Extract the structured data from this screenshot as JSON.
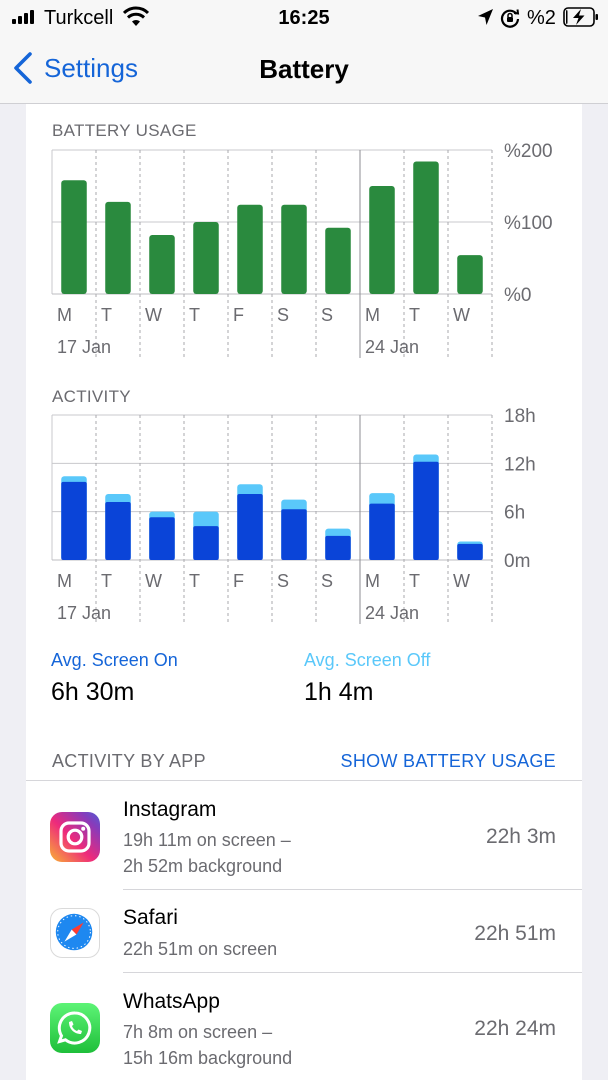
{
  "status": {
    "carrier": "Turkcell",
    "time": "16:25",
    "battery_percent": "%2",
    "battery_level": 0.02
  },
  "nav": {
    "back_label": "Settings",
    "title": "Battery"
  },
  "battery_usage": {
    "heading": "BATTERY USAGE",
    "chart_data": {
      "type": "bar",
      "categories": [
        "M",
        "T",
        "W",
        "T",
        "F",
        "S",
        "S",
        "M",
        "T",
        "W"
      ],
      "values": [
        158,
        128,
        82,
        100,
        124,
        124,
        92,
        150,
        184,
        54
      ],
      "y_tick_labels": [
        "%200",
        "%100",
        "%0"
      ],
      "ylim": [
        0,
        200
      ],
      "week_labels": [
        {
          "index": 0,
          "label": "17 Jan"
        },
        {
          "index": 7,
          "label": "24 Jan"
        }
      ],
      "color": "#2a8a3e"
    }
  },
  "activity": {
    "heading": "ACTIVITY",
    "chart_data": {
      "type": "bar",
      "categories": [
        "M",
        "T",
        "W",
        "T",
        "F",
        "S",
        "S",
        "M",
        "T",
        "W"
      ],
      "series": [
        {
          "name": "Avg. Screen On",
          "values": [
            9.7,
            7.2,
            5.3,
            4.2,
            8.2,
            6.3,
            3.0,
            7.0,
            12.2,
            2.0
          ]
        },
        {
          "name": "Avg. Screen Off",
          "values": [
            0.7,
            1.0,
            0.7,
            1.8,
            1.2,
            1.2,
            0.9,
            1.3,
            0.9,
            0.3
          ]
        }
      ],
      "y_tick_labels": [
        "18h",
        "12h",
        "6h",
        "0m"
      ],
      "ylim": [
        0,
        18
      ],
      "week_labels": [
        {
          "index": 0,
          "label": "17 Jan"
        },
        {
          "index": 7,
          "label": "24 Jan"
        }
      ],
      "colors": {
        "screen_on": "#0a44d8",
        "screen_off": "#5ac8fa"
      }
    }
  },
  "averages": {
    "screen_on_label": "Avg. Screen On",
    "screen_on_value": "6h 30m",
    "screen_off_label": "Avg. Screen Off",
    "screen_off_value": "1h 4m"
  },
  "apps": {
    "heading": "ACTIVITY BY APP",
    "toggle_label": "SHOW BATTERY USAGE",
    "items": [
      {
        "name": "Instagram",
        "line1": "19h 11m on screen –",
        "line2": "2h 52m background",
        "total": "22h 3m",
        "icon": "instagram-icon"
      },
      {
        "name": "Safari",
        "line1": "22h 51m on screen",
        "line2": "",
        "total": "22h 51m",
        "icon": "safari-icon"
      },
      {
        "name": "WhatsApp",
        "line1": "7h 8m on screen –",
        "line2": "15h 16m background",
        "total": "22h 24m",
        "icon": "whatsapp-icon"
      }
    ]
  }
}
